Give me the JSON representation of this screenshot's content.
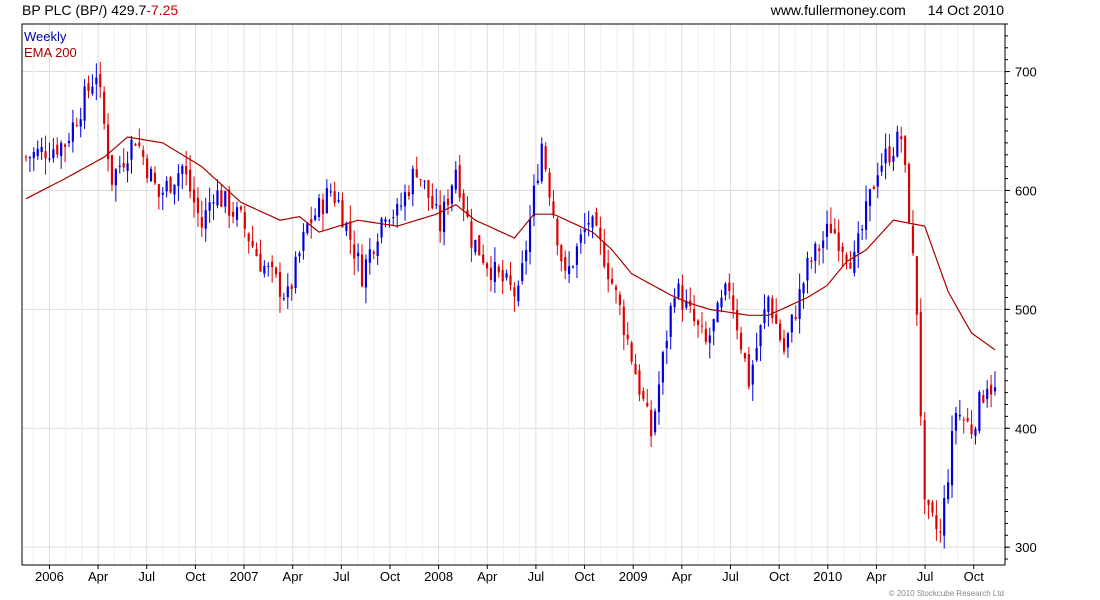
{
  "header": {
    "symbol": "BP PLC (BP/)",
    "price": "429.7",
    "change": "-7.25",
    "site": "www.fullermoney.com",
    "date": "14 Oct 2010"
  },
  "copyright": "© 2010 Stockcube Research Ltd",
  "colors": {
    "up": "#0000dd",
    "down": "#dd0000",
    "ema": "#aa0000",
    "grid": "#dddddd"
  },
  "chart_data": {
    "type": "candlestick",
    "interval_label": "Weekly",
    "overlay_label": "EMA 200",
    "y_axis": {
      "position": "right",
      "ticks": [
        300,
        400,
        500,
        600,
        700
      ],
      "range": [
        285,
        740
      ]
    },
    "x_tick_labels": [
      "2006",
      "Apr",
      "Jul",
      "Oct",
      "2007",
      "Apr",
      "Jul",
      "Oct",
      "2008",
      "Apr",
      "Jul",
      "Oct",
      "2009",
      "Apr",
      "Jul",
      "Oct",
      "2010",
      "Apr",
      "Jul",
      "Oct"
    ],
    "x_range_weeks": 248,
    "grid": true,
    "path_weeks": [
      0,
      10,
      18,
      22,
      28,
      34,
      40,
      45,
      48,
      55,
      60,
      67,
      72,
      78,
      80,
      86,
      92,
      95,
      100,
      106,
      110,
      114,
      120,
      126,
      132,
      138,
      144,
      148,
      152,
      160,
      166,
      174,
      180,
      185,
      190,
      194,
      200,
      206,
      212,
      218,
      224,
      226,
      228,
      230,
      234,
      238,
      242,
      246,
      248
    ],
    "path_closes": [
      628,
      640,
      700,
      610,
      645,
      595,
      620,
      570,
      600,
      575,
      540,
      510,
      570,
      600,
      590,
      530,
      585,
      580,
      620,
      570,
      620,
      560,
      530,
      510,
      640,
      525,
      575,
      545,
      500,
      395,
      520,
      470,
      520,
      440,
      510,
      465,
      535,
      570,
      540,
      620,
      645,
      580,
      500,
      330,
      310,
      415,
      400,
      440,
      430
    ],
    "ema200": {
      "weeks": [
        0,
        10,
        20,
        26,
        35,
        45,
        55,
        65,
        70,
        75,
        85,
        95,
        105,
        110,
        115,
        125,
        130,
        135,
        145,
        150,
        155,
        165,
        170,
        175,
        185,
        190,
        200,
        205,
        210,
        215,
        222,
        230,
        236,
        242,
        248
      ],
      "values": [
        593,
        610,
        628,
        645,
        640,
        620,
        590,
        575,
        578,
        565,
        575,
        570,
        580,
        588,
        575,
        560,
        580,
        580,
        565,
        550,
        530,
        512,
        505,
        500,
        495,
        495,
        510,
        520,
        540,
        550,
        575,
        570,
        515,
        480,
        466
      ]
    }
  }
}
